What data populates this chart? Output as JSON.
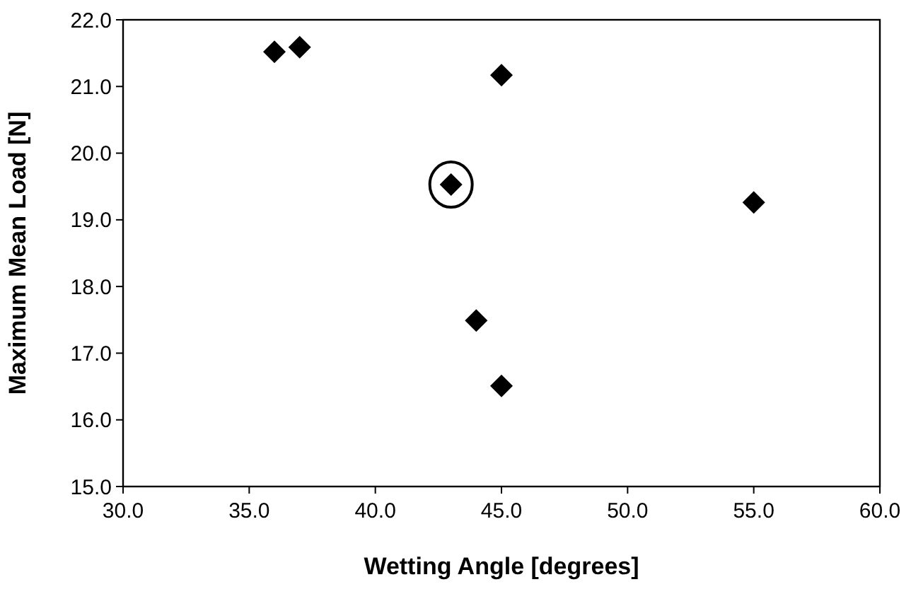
{
  "chart_data": {
    "type": "scatter",
    "xlabel": "Wetting Angle [degrees]",
    "ylabel": "Maximum Mean Load [N]",
    "x": [
      36,
      37,
      45,
      43,
      55,
      44,
      45
    ],
    "values": [
      21.52,
      21.59,
      21.17,
      19.53,
      19.26,
      17.49,
      16.51
    ],
    "color": "#000000",
    "marker": "diamond",
    "xlim": [
      30,
      60
    ],
    "xticks": [
      {
        "value": 30,
        "label": "30.0"
      },
      {
        "value": 35,
        "label": "35.0"
      },
      {
        "value": 40,
        "label": "40.0"
      },
      {
        "value": 45,
        "label": "45.0"
      },
      {
        "value": 50,
        "label": "50.0"
      },
      {
        "value": 55,
        "label": "55.0"
      },
      {
        "value": 60,
        "label": "60.0"
      }
    ],
    "ylim": [
      15,
      22
    ],
    "yticks": [
      {
        "value": 15,
        "label": "15.0"
      },
      {
        "value": 16,
        "label": "16.0"
      },
      {
        "value": 17,
        "label": "17.0"
      },
      {
        "value": 18,
        "label": "18.0"
      },
      {
        "value": 19,
        "label": "19.0"
      },
      {
        "value": 20,
        "label": "20.0"
      },
      {
        "value": 21,
        "label": "21.0"
      },
      {
        "value": 22,
        "label": "22.0"
      }
    ],
    "grid": false
  }
}
